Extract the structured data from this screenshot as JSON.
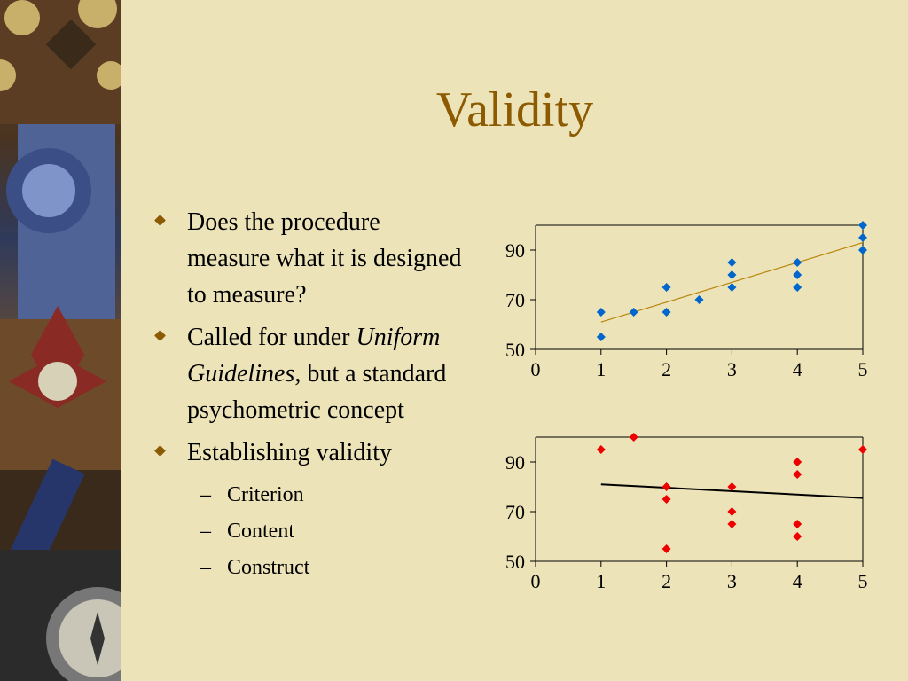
{
  "slide": {
    "title": "Validity",
    "bullets": [
      {
        "text": "Does the procedure measure what it is designed to measure?"
      },
      {
        "text_before": "Called for under ",
        "italic": "Uniform Guidelines",
        "text_after": ", but a standard psychometric concept"
      },
      {
        "text": "Establishing validity"
      }
    ],
    "sub_bullets": [
      "Criterion",
      "Content",
      "Construct"
    ],
    "dash": "–"
  },
  "colors": {
    "title": "#8c5a00",
    "bullet": "#8c5a00",
    "background": "#ece3b9",
    "series1": "#0066cc",
    "trend1": "#b8860b",
    "series2": "#ee0000",
    "trend2": "#000000"
  },
  "chart_data": [
    {
      "type": "scatter",
      "x": [
        1,
        1,
        1.5,
        2,
        2,
        2.5,
        3,
        3,
        3,
        4,
        4,
        4,
        5,
        5,
        5
      ],
      "y": [
        65,
        55,
        65,
        75,
        65,
        70,
        85,
        80,
        75,
        85,
        80,
        75,
        100,
        95,
        90
      ],
      "trendline": [
        [
          1,
          61
        ],
        [
          5,
          93
        ]
      ],
      "xlim": [
        0,
        5
      ],
      "ylim": [
        50,
        100
      ],
      "xticks": [
        "0",
        "1",
        "2",
        "3",
        "4",
        "5"
      ],
      "yticks": [
        "50",
        "70",
        "90"
      ],
      "marker": "diamond"
    },
    {
      "type": "scatter",
      "x": [
        1,
        1.5,
        2,
        2,
        2,
        3,
        3,
        3,
        4,
        4,
        4,
        4,
        5
      ],
      "y": [
        95,
        100,
        80,
        75,
        55,
        80,
        70,
        65,
        90,
        85,
        65,
        60,
        95
      ],
      "trendline": [
        [
          1,
          81
        ],
        [
          5,
          75.5
        ]
      ],
      "xlim": [
        0,
        5
      ],
      "ylim": [
        50,
        100
      ],
      "xticks": [
        "0",
        "1",
        "2",
        "3",
        "4",
        "5"
      ],
      "yticks": [
        "50",
        "70",
        "90"
      ],
      "marker": "diamond"
    }
  ]
}
